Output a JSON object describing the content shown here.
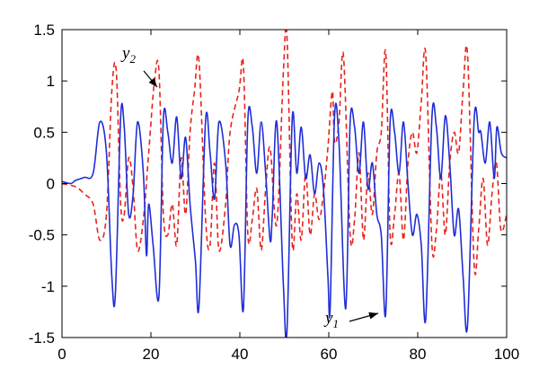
{
  "chart_data": {
    "type": "line",
    "xlim": [
      0,
      100
    ],
    "ylim": [
      -1.5,
      1.5
    ],
    "grid": false,
    "x_ticks": [
      0,
      20,
      40,
      60,
      80,
      100
    ],
    "x_tick_labels": [
      "0",
      "20",
      "40",
      "60",
      "80",
      "100"
    ],
    "y_ticks": [
      1.5,
      1,
      0.5,
      0,
      -0.5,
      -1,
      -1.5
    ],
    "y_tick_labels": [
      "1.5",
      "1",
      "0.5",
      "0",
      "-0.5",
      "-1",
      "-1.5"
    ],
    "annotations": [
      {
        "base": "y",
        "sub": "2",
        "series": "y2"
      },
      {
        "base": "y",
        "sub": "1",
        "series": "y1"
      }
    ],
    "series": [
      {
        "key": "y1",
        "color": "#1f2ed6",
        "style": "solid",
        "points": [
          [
            0,
            0.02
          ],
          [
            2,
            0.0
          ],
          [
            3,
            0.03
          ],
          [
            5,
            0.06
          ],
          [
            7,
            0.1
          ],
          [
            8.5,
            0.6
          ],
          [
            10,
            0.3
          ],
          [
            11.2,
            -0.9
          ],
          [
            12,
            -1.08
          ],
          [
            13.2,
            0.65
          ],
          [
            14,
            0.55
          ],
          [
            15,
            -0.3
          ],
          [
            16,
            -0.1
          ],
          [
            17,
            0.6
          ],
          [
            18.3,
            0.1
          ],
          [
            19,
            -0.7
          ],
          [
            19.5,
            -0.2
          ],
          [
            20.5,
            -0.6
          ],
          [
            21.8,
            -1.1
          ],
          [
            22.8,
            0.63
          ],
          [
            23.8,
            0.5
          ],
          [
            24.8,
            0.2
          ],
          [
            25.8,
            0.65
          ],
          [
            26.8,
            0.05
          ],
          [
            27.8,
            0.45
          ],
          [
            28.8,
            -0.2
          ],
          [
            30,
            -0.75
          ],
          [
            30.8,
            -1.2
          ],
          [
            32.3,
            0.62
          ],
          [
            33.3,
            0.3
          ],
          [
            34.3,
            -0.15
          ],
          [
            35.3,
            0.6
          ],
          [
            36.8,
            0.2
          ],
          [
            37.8,
            -0.6
          ],
          [
            38.8,
            -0.4
          ],
          [
            39.8,
            -0.5
          ],
          [
            40.8,
            -1.22
          ],
          [
            41.8,
            0.62
          ],
          [
            42.8,
            0.55
          ],
          [
            43.8,
            0.1
          ],
          [
            44.8,
            0.6
          ],
          [
            45.8,
            0.1
          ],
          [
            46.8,
            -0.55
          ],
          [
            47.3,
            -0.3
          ],
          [
            48.3,
            0.6
          ],
          [
            49.8,
            -1.0
          ],
          [
            50.6,
            -1.43
          ],
          [
            51.8,
            0.65
          ],
          [
            52.8,
            0.1
          ],
          [
            53.8,
            0.55
          ],
          [
            54.8,
            0.05
          ],
          [
            55.8,
            0.28
          ],
          [
            56.8,
            -0.1
          ],
          [
            57.8,
            0.2
          ],
          [
            58.8,
            -0.05
          ],
          [
            59.8,
            -0.9
          ],
          [
            60.3,
            -1.22
          ],
          [
            61.3,
            0.66
          ],
          [
            62.3,
            0.4
          ],
          [
            63.8,
            -1.22
          ],
          [
            64.8,
            0.6
          ],
          [
            65.8,
            0.55
          ],
          [
            66.8,
            0.1
          ],
          [
            67.8,
            0.6
          ],
          [
            68.8,
            -0.05
          ],
          [
            69.8,
            0.2
          ],
          [
            70.8,
            -0.3
          ],
          [
            71.8,
            -0.5
          ],
          [
            72.8,
            -1.27
          ],
          [
            73.8,
            0.6
          ],
          [
            74.8,
            0.5
          ],
          [
            75.8,
            0.1
          ],
          [
            76.8,
            0.6
          ],
          [
            77.8,
            0.0
          ],
          [
            78.8,
            -0.5
          ],
          [
            79.8,
            -0.3
          ],
          [
            80.8,
            -0.6
          ],
          [
            81.8,
            -1.32
          ],
          [
            83.2,
            0.65
          ],
          [
            84.2,
            0.55
          ],
          [
            85.2,
            0.05
          ],
          [
            86.2,
            0.66
          ],
          [
            87.2,
            0.2
          ],
          [
            88.2,
            -0.5
          ],
          [
            89.2,
            -0.25
          ],
          [
            90.2,
            -0.9
          ],
          [
            91.2,
            -1.38
          ],
          [
            92.7,
            0.63
          ],
          [
            93.7,
            0.5
          ],
          [
            94.2,
            0.5
          ],
          [
            95.2,
            0.2
          ],
          [
            96.2,
            0.6
          ],
          [
            97.2,
            0.05
          ],
          [
            97.8,
            0.55
          ],
          [
            98.8,
            0.3
          ],
          [
            100,
            0.25
          ]
        ]
      },
      {
        "key": "y2",
        "color": "#e8231b",
        "style": "dashed",
        "points": [
          [
            0,
            0.0
          ],
          [
            3,
            -0.03
          ],
          [
            5,
            -0.1
          ],
          [
            7,
            -0.2
          ],
          [
            8.5,
            -0.55
          ],
          [
            10,
            -0.3
          ],
          [
            11.2,
            0.9
          ],
          [
            12.2,
            1.1
          ],
          [
            13.2,
            -0.2
          ],
          [
            14,
            -0.3
          ],
          [
            15,
            0.25
          ],
          [
            16,
            -0.05
          ],
          [
            17,
            -0.65
          ],
          [
            18.3,
            -0.35
          ],
          [
            19.5,
            0.3
          ],
          [
            20.8,
            1.0
          ],
          [
            21.8,
            1.1
          ],
          [
            22.8,
            -0.3
          ],
          [
            23.8,
            -0.5
          ],
          [
            24.8,
            -0.2
          ],
          [
            25.8,
            -0.6
          ],
          [
            26.8,
            0.25
          ],
          [
            27.8,
            -0.3
          ],
          [
            28.8,
            0.5
          ],
          [
            29.8,
            0.9
          ],
          [
            30.8,
            1.2
          ],
          [
            32.3,
            -0.35
          ],
          [
            33.3,
            -0.6
          ],
          [
            34.3,
            0.2
          ],
          [
            35.3,
            -0.65
          ],
          [
            36.8,
            -0.2
          ],
          [
            37.8,
            0.5
          ],
          [
            39.8,
            0.9
          ],
          [
            40.8,
            1.15
          ],
          [
            41.8,
            -0.5
          ],
          [
            42.8,
            -0.35
          ],
          [
            43.8,
            -0.05
          ],
          [
            44.8,
            -0.65
          ],
          [
            45.8,
            -0.05
          ],
          [
            46.8,
            0.35
          ],
          [
            48.3,
            -0.4
          ],
          [
            49.8,
            1.1
          ],
          [
            50.6,
            1.43
          ],
          [
            51.8,
            -0.6
          ],
          [
            52.8,
            -0.1
          ],
          [
            53.8,
            -0.55
          ],
          [
            54.8,
            0.1
          ],
          [
            55.8,
            -0.5
          ],
          [
            56.8,
            -0.1
          ],
          [
            57.8,
            -0.35
          ],
          [
            58.8,
            -0.1
          ],
          [
            59.8,
            0.35
          ],
          [
            60.8,
            0.9
          ],
          [
            61.3,
            0.4
          ],
          [
            62.3,
            0.6
          ],
          [
            63.3,
            1.25
          ],
          [
            64.8,
            -0.5
          ],
          [
            65.8,
            -0.35
          ],
          [
            66.8,
            0.3
          ],
          [
            67.8,
            -0.55
          ],
          [
            68.8,
            0.1
          ],
          [
            69.8,
            -0.3
          ],
          [
            70.8,
            0.3
          ],
          [
            71.8,
            0.5
          ],
          [
            72.8,
            1.28
          ],
          [
            73.8,
            -0.5
          ],
          [
            74.8,
            -0.3
          ],
          [
            75.8,
            0.1
          ],
          [
            76.8,
            -0.55
          ],
          [
            77.8,
            0.2
          ],
          [
            78.8,
            0.5
          ],
          [
            79.8,
            0.3
          ],
          [
            80.8,
            0.8
          ],
          [
            81.8,
            1.26
          ],
          [
            83.2,
            -0.6
          ],
          [
            84.2,
            -0.45
          ],
          [
            85.2,
            0.1
          ],
          [
            86.2,
            -0.5
          ],
          [
            87.2,
            0.2
          ],
          [
            88.2,
            0.5
          ],
          [
            89.2,
            0.3
          ],
          [
            90.2,
            0.9
          ],
          [
            91.2,
            1.26
          ],
          [
            92.7,
            -0.8
          ],
          [
            93.7,
            -0.45
          ],
          [
            94.7,
            0.05
          ],
          [
            95.7,
            -0.6
          ],
          [
            96.7,
            -0.1
          ],
          [
            97.7,
            0.2
          ],
          [
            98.7,
            -0.45
          ],
          [
            100,
            -0.3
          ]
        ]
      }
    ]
  }
}
